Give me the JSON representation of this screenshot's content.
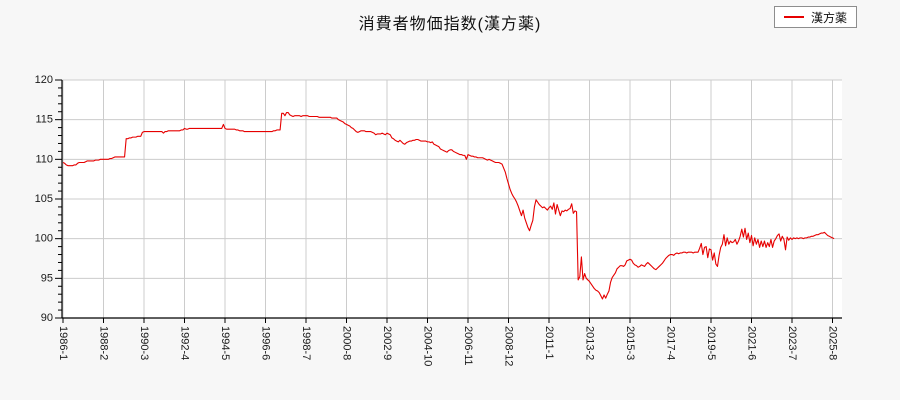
{
  "title": {
    "text": "消費者物価指数(漢方薬)"
  },
  "legend": {
    "label": "漢方薬",
    "line_color": "#e60000"
  },
  "colors": {
    "page_background": "#f7f7f7",
    "plot_background": "#ffffff",
    "grid": "#cccccc",
    "axis": "#000000",
    "series": "#e60000",
    "text": "#1a1a1a"
  },
  "chart_data": {
    "type": "line",
    "title": "消費者物価指数(漢方薬)",
    "grid": true,
    "legend_position": "top-right",
    "ylim": [
      90,
      120
    ],
    "y_ticks": [
      90,
      95,
      100,
      105,
      110,
      115,
      120
    ],
    "y_minor_tick_step": 1,
    "x_tick_interval_months": 25,
    "x_tick_labels": [
      "1986-1",
      "1988-2",
      "1990-3",
      "1992-4",
      "1994-5",
      "1996-6",
      "1998-7",
      "2000-8",
      "2002-9",
      "2004-10",
      "2006-11",
      "2008-12",
      "2011-1",
      "2013-2",
      "2015-3",
      "2017-4",
      "2019-5",
      "2021-6",
      "2023-7",
      "2025-8"
    ],
    "series": [
      {
        "name": "漢方薬",
        "color": "#e60000",
        "start": "1986-1",
        "frequency": "monthly",
        "values": [
          109.6,
          109.5,
          109.3,
          109.2,
          109.2,
          109.2,
          109.2,
          109.3,
          109.3,
          109.5,
          109.6,
          109.6,
          109.6,
          109.6,
          109.7,
          109.8,
          109.8,
          109.8,
          109.8,
          109.8,
          109.9,
          109.9,
          109.9,
          110.0,
          110.0,
          110.0,
          110.0,
          110.0,
          110.0,
          110.1,
          110.1,
          110.2,
          110.3,
          110.3,
          110.3,
          110.3,
          110.3,
          110.3,
          110.3,
          112.6,
          112.6,
          112.7,
          112.7,
          112.8,
          112.8,
          112.8,
          112.9,
          112.9,
          112.9,
          113.4,
          113.5,
          113.5,
          113.5,
          113.5,
          113.5,
          113.5,
          113.5,
          113.5,
          113.5,
          113.5,
          113.5,
          113.5,
          113.3,
          113.5,
          113.5,
          113.6,
          113.6,
          113.6,
          113.6,
          113.6,
          113.6,
          113.6,
          113.6,
          113.7,
          113.7,
          113.9,
          113.8,
          113.8,
          113.9,
          113.9,
          113.9,
          113.9,
          113.9,
          113.9,
          113.9,
          113.9,
          113.9,
          113.9,
          113.9,
          113.9,
          113.9,
          113.9,
          113.9,
          113.9,
          113.9,
          113.9,
          113.9,
          113.9,
          113.9,
          114.4,
          113.9,
          113.8,
          113.8,
          113.8,
          113.8,
          113.8,
          113.8,
          113.7,
          113.7,
          113.6,
          113.6,
          113.6,
          113.5,
          113.5,
          113.5,
          113.5,
          113.5,
          113.5,
          113.5,
          113.5,
          113.5,
          113.5,
          113.5,
          113.5,
          113.5,
          113.5,
          113.5,
          113.5,
          113.5,
          113.5,
          113.6,
          113.6,
          113.7,
          113.7,
          113.7,
          115.8,
          115.8,
          115.5,
          115.9,
          115.9,
          115.6,
          115.5,
          115.4,
          115.5,
          115.5,
          115.5,
          115.5,
          115.4,
          115.5,
          115.5,
          115.5,
          115.5,
          115.4,
          115.4,
          115.4,
          115.4,
          115.4,
          115.4,
          115.3,
          115.3,
          115.3,
          115.3,
          115.3,
          115.3,
          115.3,
          115.3,
          115.2,
          115.2,
          115.2,
          115.2,
          115.0,
          114.9,
          114.8,
          114.7,
          114.5,
          114.4,
          114.3,
          114.2,
          114.0,
          113.9,
          113.7,
          113.5,
          113.4,
          113.5,
          113.6,
          113.6,
          113.6,
          113.5,
          113.5,
          113.5,
          113.5,
          113.4,
          113.3,
          113.1,
          113.2,
          113.2,
          113.2,
          113.3,
          113.2,
          113.1,
          113.3,
          113.2,
          113.1,
          112.7,
          112.6,
          112.4,
          112.3,
          112.2,
          112.4,
          112.2,
          112.0,
          111.9,
          112.1,
          112.2,
          112.3,
          112.3,
          112.4,
          112.4,
          112.5,
          112.5,
          112.4,
          112.3,
          112.3,
          112.3,
          112.3,
          112.2,
          112.2,
          112.1,
          112.2,
          111.9,
          111.8,
          111.7,
          111.6,
          111.3,
          111.2,
          111.1,
          111.0,
          110.9,
          111.1,
          111.2,
          111.2,
          111.0,
          110.9,
          110.8,
          110.7,
          110.6,
          110.6,
          110.5,
          110.5,
          110.0,
          110.6,
          110.5,
          110.4,
          110.4,
          110.3,
          110.3,
          110.2,
          110.2,
          110.2,
          110.2,
          110.1,
          110.0,
          109.9,
          110.0,
          109.9,
          109.8,
          109.7,
          109.6,
          109.6,
          109.6,
          109.5,
          109.4,
          108.9,
          108.4,
          107.6,
          106.9,
          106.2,
          105.7,
          105.3,
          105.0,
          104.6,
          104.1,
          103.5,
          102.9,
          103.6,
          102.6,
          102.0,
          101.4,
          101.0,
          101.7,
          102.3,
          104.0,
          104.9,
          104.6,
          104.3,
          104.1,
          103.9,
          104.0,
          103.8,
          103.6,
          103.9,
          104.1,
          103.7,
          104.5,
          103.1,
          104.3,
          103.6,
          102.9,
          103.5,
          103.4,
          103.6,
          103.5,
          103.7,
          103.8,
          104.4,
          103.2,
          103.5,
          103.4,
          94.8,
          95.2,
          97.7,
          94.8,
          95.6,
          95.0,
          94.8,
          94.6,
          94.3,
          94.0,
          93.7,
          93.5,
          93.4,
          93.2,
          92.8,
          92.4,
          92.9,
          92.5,
          93.0,
          93.4,
          94.5,
          95.1,
          95.4,
          95.7,
          96.2,
          96.4,
          96.6,
          96.6,
          96.5,
          96.7,
          97.2,
          97.3,
          97.4,
          97.3,
          96.9,
          96.7,
          96.6,
          96.4,
          96.5,
          96.7,
          96.6,
          96.5,
          96.8,
          97.0,
          96.8,
          96.6,
          96.4,
          96.2,
          96.1,
          96.3,
          96.5,
          96.7,
          96.9,
          97.2,
          97.5,
          97.7,
          97.9,
          98.0,
          98.0,
          97.9,
          98.1,
          98.2,
          98.1,
          98.2,
          98.2,
          98.3,
          98.3,
          98.2,
          98.3,
          98.3,
          98.3,
          98.2,
          98.3,
          98.3,
          98.3,
          98.8,
          99.4,
          98.0,
          98.9,
          99.0,
          97.6,
          98.7,
          98.6,
          97.3,
          98.2,
          96.8,
          96.5,
          97.9,
          98.9,
          99.3,
          100.5,
          99.1,
          100.1,
          99.3,
          99.7,
          99.5,
          99.6,
          99.9,
          99.3,
          99.7,
          100.3,
          101.2,
          100.2,
          101.3,
          99.9,
          100.7,
          99.5,
          100.4,
          99.1,
          100.1,
          99.3,
          99.9,
          98.9,
          99.7,
          99.0,
          99.7,
          98.9,
          99.5,
          99.0,
          99.9,
          98.9,
          99.7,
          100.0,
          100.4,
          100.6,
          99.7,
          100.3,
          99.9,
          98.6,
          100.2,
          99.8,
          100.1,
          99.9,
          100.1,
          100.0,
          100.1,
          100.0,
          100.1,
          100.1,
          100.0,
          100.1,
          100.1,
          100.2,
          100.2,
          100.3,
          100.3,
          100.4,
          100.5,
          100.5,
          100.6,
          100.7,
          100.7,
          100.8,
          100.6,
          100.4,
          100.3,
          100.2,
          100.1,
          100.0
        ]
      }
    ]
  }
}
